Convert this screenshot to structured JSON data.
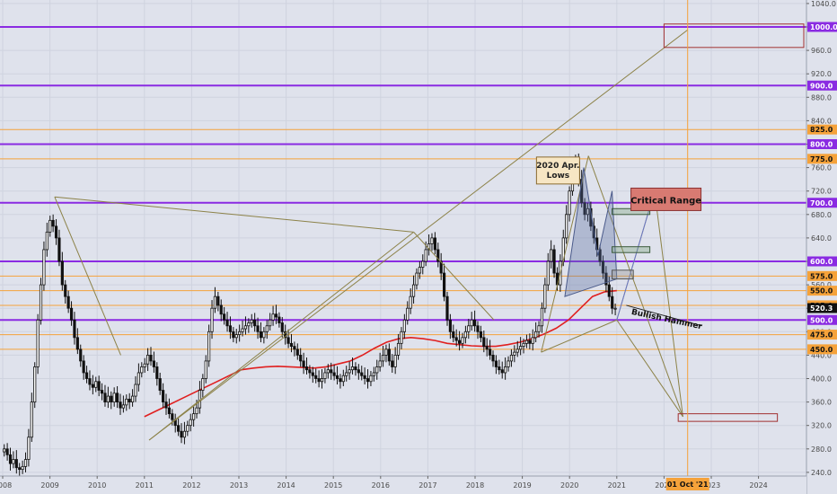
{
  "chart_data": {
    "type": "candlestick",
    "x_axis": {
      "type": "time",
      "ticks": [
        "2008",
        "2009",
        "2010",
        "2011",
        "2012",
        "2013",
        "2014",
        "2015",
        "2016",
        "2017",
        "2018",
        "2019",
        "2020",
        "2021",
        "2022",
        "2023",
        "2024"
      ],
      "range": [
        "2008-01-01",
        "2024-12-01"
      ]
    },
    "y_axis": {
      "ticks": [
        240,
        280,
        320,
        360,
        400,
        440,
        480,
        520,
        560,
        600,
        640,
        680,
        720,
        760,
        800,
        840,
        880,
        920,
        960,
        1000,
        1040
      ],
      "range": [
        232,
        1046
      ],
      "position": "right"
    },
    "price_badges": [
      {
        "label": "1000.0",
        "value": 1000,
        "color": "#8a2be2"
      },
      {
        "label": "900.0",
        "value": 900,
        "color": "#8a2be2"
      },
      {
        "label": "825.0",
        "value": 825,
        "color": "#f5a23a"
      },
      {
        "label": "800.0",
        "value": 800,
        "color": "#8a2be2"
      },
      {
        "label": "775.0",
        "value": 775,
        "color": "#f5a23a"
      },
      {
        "label": "700.0",
        "value": 700,
        "color": "#8a2be2"
      },
      {
        "label": "600.0",
        "value": 600,
        "color": "#8a2be2"
      },
      {
        "label": "575.0",
        "value": 575,
        "color": "#f5a23a"
      },
      {
        "label": "550.0",
        "value": 550,
        "color": "#f5a23a"
      },
      {
        "label": "525.0",
        "value": 525,
        "color": "#f5a23a"
      },
      {
        "label": "520.3",
        "value": 520.3,
        "color": "#111111"
      },
      {
        "label": "500.0",
        "value": 500,
        "color": "#8a2be2"
      },
      {
        "label": "475.0",
        "value": 475,
        "color": "#f5a23a"
      },
      {
        "label": "450.0",
        "value": 450,
        "color": "#f5a23a"
      }
    ],
    "horizontal_lines": [
      {
        "value": 1000,
        "color": "#8a2be2",
        "width": 2
      },
      {
        "value": 900,
        "color": "#8a2be2",
        "width": 2
      },
      {
        "value": 825,
        "color": "#f5a23a",
        "width": 1
      },
      {
        "value": 800,
        "color": "#8a2be2",
        "width": 2
      },
      {
        "value": 775,
        "color": "#f5a23a",
        "width": 1
      },
      {
        "value": 700,
        "color": "#8a2be2",
        "width": 2
      },
      {
        "value": 600,
        "color": "#8a2be2",
        "width": 2
      },
      {
        "value": 575,
        "color": "#f5a23a",
        "width": 1
      },
      {
        "value": 550,
        "color": "#f5a23a",
        "width": 1
      },
      {
        "value": 525,
        "color": "#f5a23a",
        "width": 1
      },
      {
        "value": 500,
        "color": "#8a2be2",
        "width": 2
      },
      {
        "value": 475,
        "color": "#f5a23a",
        "width": 1
      },
      {
        "value": 450,
        "color": "#f5a23a",
        "width": 1
      }
    ],
    "candles_close": [
      280,
      270,
      255,
      262,
      248,
      245,
      250,
      262,
      300,
      360,
      420,
      500,
      560,
      620,
      650,
      670,
      660,
      640,
      600,
      560,
      540,
      520,
      500,
      470,
      450,
      430,
      410,
      400,
      390,
      385,
      395,
      380,
      375,
      360,
      370,
      360,
      375,
      360,
      350,
      355,
      365,
      360,
      370,
      390,
      410,
      420,
      425,
      440,
      430,
      420,
      400,
      380,
      360,
      350,
      340,
      330,
      320,
      310,
      300,
      310,
      320,
      330,
      340,
      350,
      380,
      400,
      430,
      480,
      520,
      540,
      525,
      510,
      500,
      490,
      480,
      470,
      475,
      480,
      485,
      490,
      495,
      500,
      490,
      480,
      470,
      480,
      490,
      500,
      510,
      505,
      495,
      480,
      470,
      460,
      455,
      450,
      440,
      430,
      420,
      415,
      410,
      405,
      400,
      395,
      400,
      410,
      415,
      410,
      405,
      400,
      395,
      405,
      410,
      415,
      420,
      415,
      410,
      405,
      400,
      395,
      405,
      410,
      420,
      430,
      440,
      450,
      430,
      420,
      440,
      460,
      480,
      500,
      520,
      540,
      560,
      580,
      590,
      600,
      620,
      630,
      640,
      620,
      600,
      580,
      540,
      500,
      480,
      470,
      465,
      460,
      470,
      480,
      490,
      500,
      490,
      480,
      470,
      455,
      450,
      440,
      430,
      420,
      415,
      410,
      420,
      430,
      440,
      445,
      450,
      455,
      460,
      465,
      460,
      470,
      480,
      490,
      520,
      560,
      600,
      620,
      580,
      560,
      600,
      640,
      680,
      720,
      750,
      770,
      740,
      700,
      680,
      690,
      660,
      640,
      620,
      600,
      580,
      560,
      540,
      520,
      520
    ],
    "moving_average": [
      335,
      345,
      355,
      365,
      375,
      385,
      395,
      405,
      415,
      418,
      420,
      421,
      420,
      419,
      418,
      420,
      425,
      430,
      440,
      452,
      462,
      468,
      470,
      468,
      465,
      460,
      458,
      456,
      455,
      455,
      458,
      462,
      468,
      476,
      486,
      500,
      520,
      540,
      548,
      550
    ],
    "annotations": [
      {
        "text": "2020 Apr. Lows",
        "lines": [
          "2020 Apr.",
          "Lows"
        ]
      },
      {
        "text": "Critical Range"
      },
      {
        "text": "Bullish Hammer"
      },
      {
        "text": "01 Oct '21"
      }
    ],
    "marker_date": "2021-10-01",
    "marker_label": "01 Oct '21"
  }
}
